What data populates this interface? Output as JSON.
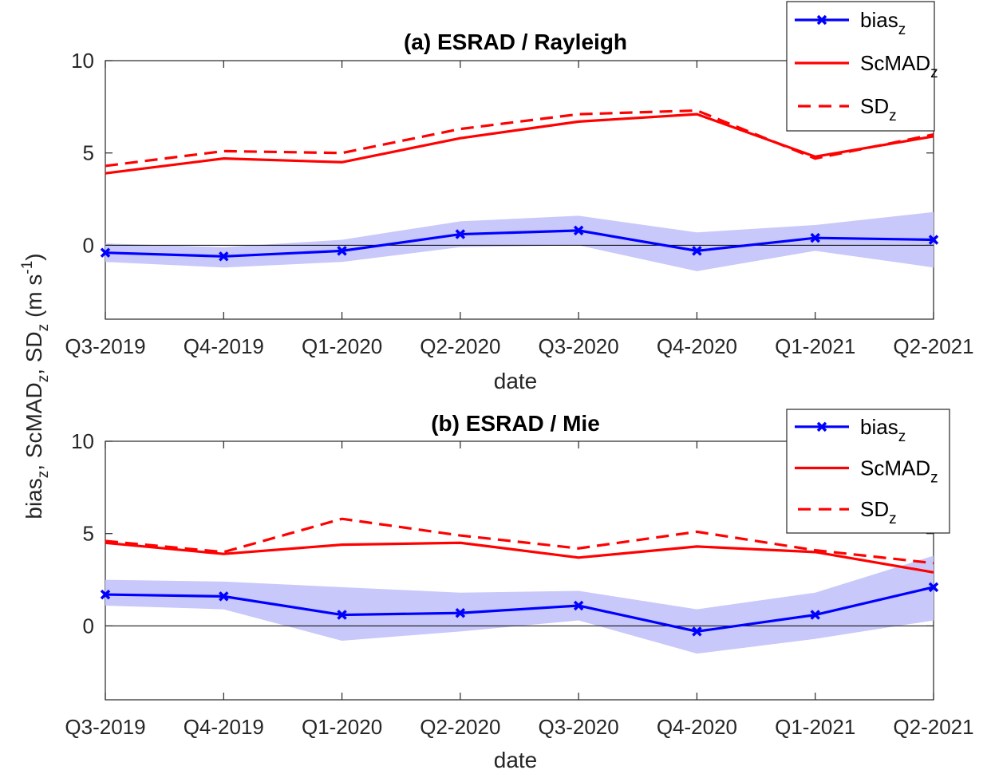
{
  "colors": {
    "bias": "#0000ff",
    "bias_band": "#c8c8fa",
    "scmad": "#ff0000",
    "sd": "#ff0000",
    "axis": "#262626",
    "zero_line": "#000000"
  },
  "ylabel": {
    "p1": "bias",
    "s1": "z",
    "p2": ", ScMAD",
    "s2": "z",
    "p3": ", SD",
    "s3": "z",
    "p4": " (m s",
    "sup": "-1",
    "p5": ")"
  },
  "legend": [
    {
      "main": "bias",
      "sub": "z",
      "style": "marker-line"
    },
    {
      "main": "ScMAD",
      "sub": "z",
      "style": "solid"
    },
    {
      "main": "SD",
      "sub": "z",
      "style": "dashed"
    }
  ],
  "chart_data": [
    {
      "type": "line",
      "title": "(a) ESRAD / Rayleigh",
      "xlabel": "date",
      "categories": [
        "Q3-2019",
        "Q4-2019",
        "Q1-2020",
        "Q2-2020",
        "Q3-2020",
        "Q4-2020",
        "Q1-2021",
        "Q2-2021"
      ],
      "ylim": [
        -4,
        10
      ],
      "yticks": [
        0,
        5,
        10
      ],
      "legend_position": "top-right",
      "series": [
        {
          "name": "bias_z",
          "style": "solid-x-markers",
          "values": [
            -0.4,
            -0.6,
            -0.3,
            0.6,
            0.8,
            -0.3,
            0.4,
            0.3
          ]
        },
        {
          "name": "bias_z band lower",
          "values": [
            -0.9,
            -1.2,
            -0.9,
            -0.1,
            0.0,
            -1.4,
            -0.3,
            -1.2
          ]
        },
        {
          "name": "bias_z band upper",
          "values": [
            0.1,
            -0.1,
            0.3,
            1.3,
            1.6,
            0.7,
            1.1,
            1.8
          ]
        },
        {
          "name": "ScMAD_z",
          "style": "solid",
          "values": [
            3.9,
            4.7,
            4.5,
            5.8,
            6.7,
            7.1,
            4.8,
            5.9
          ]
        },
        {
          "name": "SD_z",
          "style": "dashed",
          "values": [
            4.3,
            5.1,
            5.0,
            6.3,
            7.1,
            7.3,
            4.7,
            6.0
          ]
        }
      ]
    },
    {
      "type": "line",
      "title": "(b) ESRAD / Mie",
      "xlabel": "date",
      "categories": [
        "Q3-2019",
        "Q4-2019",
        "Q1-2020",
        "Q2-2020",
        "Q3-2020",
        "Q4-2020",
        "Q1-2021",
        "Q2-2021"
      ],
      "ylim": [
        -4,
        10
      ],
      "yticks": [
        0,
        5,
        10
      ],
      "legend_position": "top-right",
      "series": [
        {
          "name": "bias_z",
          "style": "solid-x-markers",
          "values": [
            1.7,
            1.6,
            0.6,
            0.7,
            1.1,
            -0.3,
            0.6,
            2.1
          ]
        },
        {
          "name": "bias_z band lower",
          "values": [
            1.1,
            0.9,
            -0.8,
            -0.3,
            0.3,
            -1.5,
            -0.7,
            0.3
          ]
        },
        {
          "name": "bias_z band upper",
          "values": [
            2.5,
            2.4,
            2.1,
            1.8,
            1.9,
            0.9,
            1.8,
            3.8
          ]
        },
        {
          "name": "ScMAD_z",
          "style": "solid",
          "values": [
            4.5,
            3.9,
            4.4,
            4.5,
            3.7,
            4.3,
            4.0,
            2.9
          ]
        },
        {
          "name": "SD_z",
          "style": "dashed",
          "values": [
            4.6,
            4.0,
            5.8,
            4.9,
            4.2,
            5.1,
            4.1,
            3.4
          ]
        }
      ]
    }
  ]
}
